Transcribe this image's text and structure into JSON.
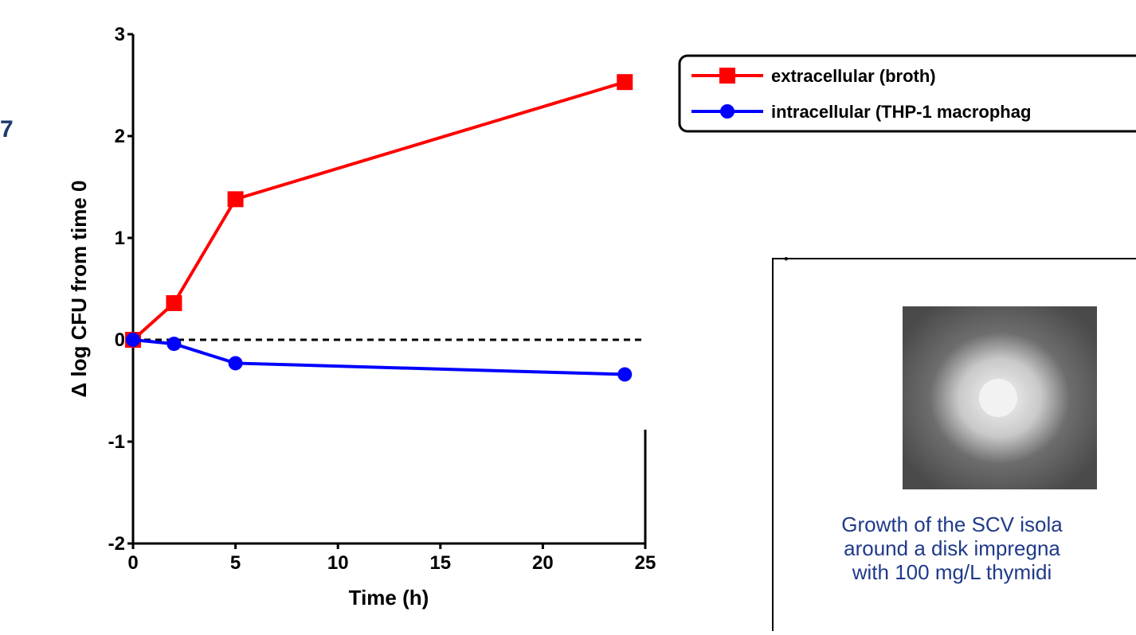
{
  "chart_data": {
    "type": "line",
    "x_label": "Time (h)",
    "y_label": "Δ log CFU from time 0",
    "xlim": [
      0,
      25
    ],
    "xticks": [
      0,
      5,
      10,
      15,
      20,
      25
    ],
    "ylim": [
      -2,
      3
    ],
    "yticks": [
      -2,
      -1,
      0,
      1,
      2,
      3
    ],
    "reference_line": 0,
    "series": [
      {
        "name": "extracellular (broth)",
        "color": "#ff0000",
        "marker": "square",
        "x": [
          0,
          2,
          5,
          24
        ],
        "values": [
          0,
          0.36,
          1.38,
          2.53
        ]
      },
      {
        "name": "intracellular (THP-1 macrophag",
        "color": "#0000ff",
        "marker": "circle",
        "x": [
          0,
          2,
          5,
          24
        ],
        "values": [
          0,
          -0.04,
          -0.23,
          -0.34
        ]
      }
    ]
  },
  "side_text": "7",
  "panel": {
    "caption": [
      "Growth of the SCV isola",
      "around a disk impregna",
      "with 100 mg/L thymidi"
    ]
  }
}
